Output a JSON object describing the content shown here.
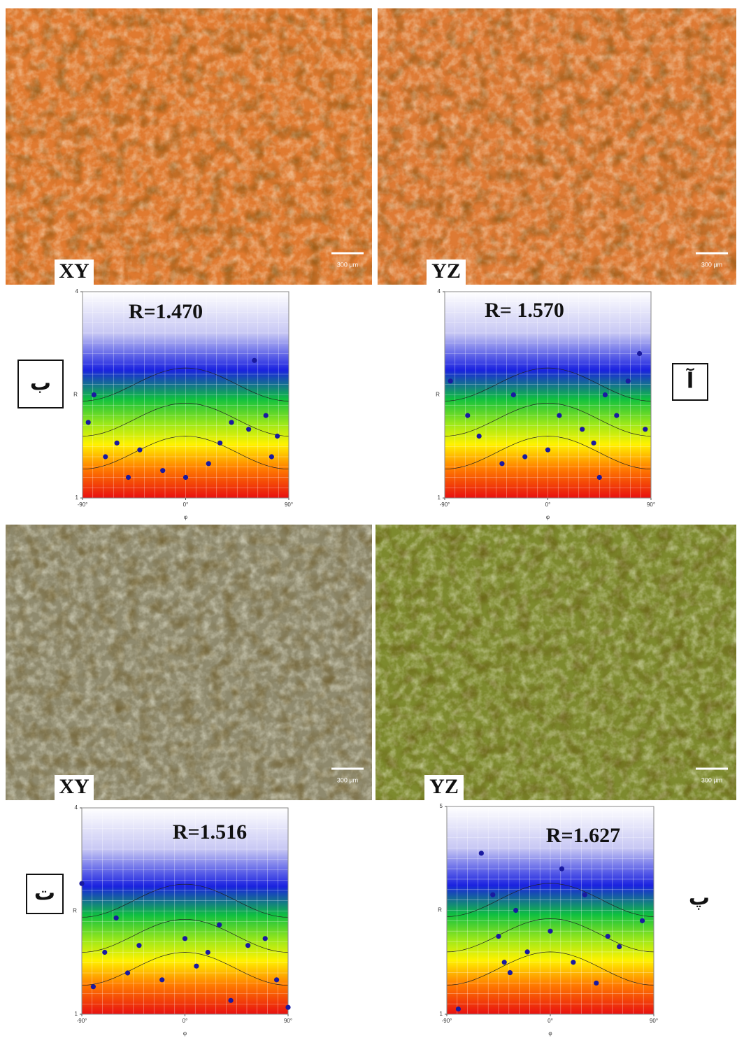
{
  "micrographs": [
    {
      "label": "XY",
      "scale": "300 µm",
      "color": "#e07a30"
    },
    {
      "label": "YZ",
      "scale": "300 µm",
      "color": "#de7a34"
    },
    {
      "label": "XY",
      "scale": "300 µm",
      "color": "#8f8a6e"
    },
    {
      "label": "YZ",
      "scale": "300 µm",
      "color": "#7d8a2e"
    }
  ],
  "chart_data": [
    {
      "type": "scatter",
      "panel_label": "ب",
      "annotation": "R=1.470",
      "xlabel": "φ",
      "ylabel": "R",
      "color": "#1a1aa0",
      "xlim": [
        -90,
        90
      ],
      "ylim": [
        1,
        4
      ],
      "xticks": [
        {
          "value": -90,
          "label": "-90°"
        },
        {
          "value": 0,
          "label": "0°"
        },
        {
          "value": 90,
          "label": "90°"
        }
      ],
      "yticks": [
        1,
        4
      ],
      "x": [
        -80,
        -60,
        -70,
        -40,
        -20,
        0,
        20,
        40,
        55,
        60,
        70,
        80,
        -85,
        30,
        -50,
        75
      ],
      "y": [
        2.5,
        1.8,
        1.6,
        1.7,
        1.4,
        1.3,
        1.5,
        2.1,
        2.0,
        3.0,
        2.2,
        1.9,
        2.1,
        1.8,
        1.3,
        1.6
      ]
    },
    {
      "type": "scatter",
      "panel_label": "آ",
      "annotation": "R= 1.570",
      "xlabel": "φ",
      "ylabel": "R",
      "color": "#1a1aa0",
      "xlim": [
        -90,
        90
      ],
      "ylim": [
        1,
        4
      ],
      "xticks": [
        {
          "value": -90,
          "label": "-90°"
        },
        {
          "value": 0,
          "label": "0°"
        },
        {
          "value": 90,
          "label": "90°"
        }
      ],
      "yticks": [
        1,
        4
      ],
      "x": [
        -85,
        -70,
        -60,
        -40,
        -20,
        0,
        10,
        30,
        40,
        50,
        60,
        70,
        80,
        85,
        -30,
        45
      ],
      "y": [
        2.7,
        2.2,
        1.9,
        1.5,
        1.6,
        1.7,
        2.2,
        2.0,
        1.8,
        2.5,
        2.2,
        2.7,
        3.1,
        2.0,
        2.5,
        1.3
      ]
    },
    {
      "type": "scatter",
      "panel_label": "ت",
      "annotation": "R=1.516",
      "xlabel": "φ",
      "ylabel": "R",
      "color": "#1a1aa0",
      "xlim": [
        -90,
        90
      ],
      "ylim": [
        1,
        4
      ],
      "xticks": [
        {
          "value": -90,
          "label": "-90°"
        },
        {
          "value": 0,
          "label": "0°"
        },
        {
          "value": 90,
          "label": "90°"
        }
      ],
      "yticks": [
        1,
        4
      ],
      "x": [
        -90,
        -70,
        -60,
        -50,
        -40,
        -20,
        0,
        10,
        30,
        40,
        55,
        70,
        80,
        90,
        -80,
        20
      ],
      "y": [
        2.9,
        1.9,
        2.4,
        1.6,
        2.0,
        1.5,
        2.1,
        1.7,
        2.3,
        1.2,
        2.0,
        2.1,
        1.5,
        1.1,
        1.4,
        1.9
      ]
    },
    {
      "type": "scatter",
      "panel_label": "پ",
      "annotation": "R=1.627",
      "xlabel": "φ",
      "ylabel": "R",
      "color": "#1a1aa0",
      "xlim": [
        -90,
        90
      ],
      "ylim": [
        1,
        5
      ],
      "xticks": [
        {
          "value": -90,
          "label": "-90°"
        },
        {
          "value": 0,
          "label": "0°"
        },
        {
          "value": 90,
          "label": "90°"
        }
      ],
      "yticks": [
        1,
        5
      ],
      "x": [
        -60,
        -50,
        -45,
        -40,
        -35,
        -30,
        -20,
        0,
        10,
        20,
        30,
        40,
        50,
        60,
        80,
        -80
      ],
      "y": [
        4.1,
        3.3,
        2.5,
        2.0,
        1.8,
        3.0,
        2.2,
        2.6,
        3.8,
        2.0,
        3.3,
        1.6,
        2.5,
        2.3,
        2.8,
        1.1
      ]
    }
  ]
}
